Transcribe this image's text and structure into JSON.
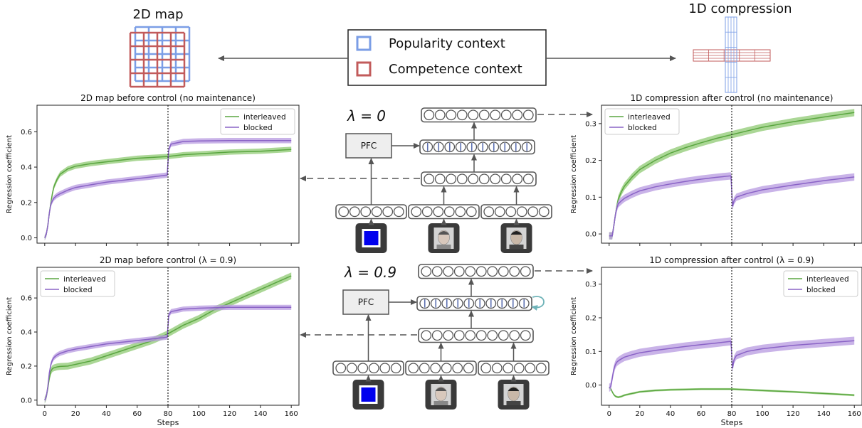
{
  "top": {
    "map2d_label": "2D map",
    "compress1d_label": "1D compression",
    "legend": {
      "popularity": "Popularity context",
      "competence": "Competence context",
      "popularity_color": "#7b9ee6",
      "competence_color": "#c25b5b"
    }
  },
  "network": {
    "lambda0": "λ = 0",
    "lambda09": "λ = 0.9",
    "pfc_label": "PFC",
    "square_icon_color": "#0000ee"
  },
  "colors": {
    "interleaved": "#5aa640",
    "interleaved_fill": "#8fca73",
    "blocked": "#8a63c6",
    "blocked_fill": "#b79ae0"
  },
  "chart_data": [
    {
      "type": "line",
      "title": "2D map before control (no maintenance)",
      "ylabel": "Regression coefficient",
      "xlabel": "",
      "xlim": [
        -5,
        165
      ],
      "ylim": [
        -0.03,
        0.75
      ],
      "yticks": [
        0.0,
        0.2,
        0.4,
        0.6
      ],
      "xticks": [
        0,
        20,
        40,
        60,
        80,
        100,
        120,
        140,
        160
      ],
      "show_xtick_labels": false,
      "vline": 80,
      "legend_position": "top-right",
      "series": [
        {
          "name": "interleaved",
          "band": 0.015,
          "x": [
            0,
            1,
            2,
            3,
            4,
            5,
            6,
            8,
            10,
            15,
            20,
            30,
            40,
            50,
            60,
            70,
            80,
            90,
            100,
            120,
            140,
            160
          ],
          "y": [
            0.0,
            0.02,
            0.07,
            0.14,
            0.2,
            0.25,
            0.29,
            0.33,
            0.36,
            0.39,
            0.405,
            0.42,
            0.43,
            0.44,
            0.45,
            0.455,
            0.46,
            0.47,
            0.475,
            0.485,
            0.49,
            0.5
          ]
        },
        {
          "name": "blocked",
          "band": 0.015,
          "x": [
            0,
            1,
            2,
            3,
            4,
            5,
            6,
            8,
            10,
            15,
            20,
            30,
            40,
            50,
            60,
            70,
            79.5,
            80.5,
            82,
            90,
            100,
            120,
            140,
            160
          ],
          "y": [
            0.0,
            0.02,
            0.07,
            0.14,
            0.19,
            0.21,
            0.225,
            0.24,
            0.25,
            0.27,
            0.285,
            0.3,
            0.315,
            0.325,
            0.335,
            0.345,
            0.355,
            0.5,
            0.53,
            0.545,
            0.548,
            0.55,
            0.55,
            0.55
          ]
        }
      ]
    },
    {
      "type": "line",
      "title": "2D map before control (λ = 0.9)",
      "ylabel": "Regression coefficient",
      "xlabel": "Steps",
      "xlim": [
        -5,
        165
      ],
      "ylim": [
        -0.03,
        0.78
      ],
      "yticks": [
        0.0,
        0.2,
        0.4,
        0.6
      ],
      "xticks": [
        0,
        20,
        40,
        60,
        80,
        100,
        120,
        140,
        160
      ],
      "show_xtick_labels": true,
      "vline": 80,
      "legend_position": "top-left",
      "series": [
        {
          "name": "interleaved",
          "band": 0.02,
          "x": [
            0,
            1,
            2,
            3,
            4,
            5,
            6,
            8,
            10,
            15,
            20,
            30,
            40,
            50,
            60,
            70,
            80,
            90,
            100,
            110,
            120,
            130,
            140,
            150,
            160
          ],
          "y": [
            0.0,
            0.02,
            0.07,
            0.13,
            0.17,
            0.185,
            0.19,
            0.195,
            0.198,
            0.2,
            0.21,
            0.23,
            0.26,
            0.29,
            0.32,
            0.35,
            0.39,
            0.44,
            0.48,
            0.53,
            0.57,
            0.61,
            0.65,
            0.69,
            0.73
          ]
        },
        {
          "name": "blocked",
          "band": 0.015,
          "x": [
            0,
            1,
            2,
            3,
            4,
            5,
            6,
            8,
            10,
            15,
            20,
            30,
            40,
            50,
            60,
            70,
            79.5,
            80.5,
            82,
            90,
            100,
            120,
            140,
            160
          ],
          "y": [
            0.0,
            0.02,
            0.08,
            0.16,
            0.21,
            0.235,
            0.25,
            0.265,
            0.275,
            0.29,
            0.3,
            0.315,
            0.33,
            0.34,
            0.35,
            0.36,
            0.37,
            0.5,
            0.52,
            0.535,
            0.54,
            0.545,
            0.545,
            0.545
          ]
        }
      ]
    },
    {
      "type": "line",
      "title": "1D compression after control (no maintenance)",
      "ylabel": "Regression coefficient",
      "xlabel": "",
      "xlim": [
        -5,
        165
      ],
      "ylim": [
        -0.025,
        0.35
      ],
      "yticks": [
        0.0,
        0.1,
        0.2,
        0.3
      ],
      "xticks": [
        0,
        20,
        40,
        60,
        80,
        100,
        120,
        140,
        160
      ],
      "show_xtick_labels": false,
      "vline": 80,
      "legend_position": "top-left",
      "series": [
        {
          "name": "interleaved",
          "band": 0.01,
          "x": [
            0,
            2,
            3,
            4,
            5,
            6,
            8,
            10,
            15,
            20,
            30,
            40,
            50,
            60,
            70,
            80,
            90,
            100,
            120,
            140,
            160
          ],
          "y": [
            -0.005,
            -0.005,
            0.02,
            0.05,
            0.075,
            0.095,
            0.115,
            0.13,
            0.155,
            0.175,
            0.2,
            0.22,
            0.235,
            0.248,
            0.26,
            0.27,
            0.28,
            0.29,
            0.305,
            0.318,
            0.33
          ]
        },
        {
          "name": "blocked",
          "band": 0.01,
          "x": [
            0,
            2,
            3,
            4,
            5,
            6,
            8,
            10,
            15,
            20,
            30,
            40,
            50,
            60,
            70,
            79.5,
            80.5,
            81.5,
            83,
            90,
            100,
            120,
            140,
            160
          ],
          "y": [
            -0.005,
            -0.005,
            0.02,
            0.05,
            0.07,
            0.082,
            0.09,
            0.097,
            0.108,
            0.117,
            0.128,
            0.136,
            0.143,
            0.149,
            0.154,
            0.158,
            0.075,
            0.09,
            0.1,
            0.11,
            0.12,
            0.133,
            0.145,
            0.155
          ]
        }
      ]
    },
    {
      "type": "line",
      "title": "1D compression after control (λ = 0.9)",
      "ylabel": "Regression coefficient",
      "xlabel": "Steps",
      "xlim": [
        -5,
        165
      ],
      "ylim": [
        -0.06,
        0.35
      ],
      "yticks": [
        0.0,
        0.1,
        0.2,
        0.3
      ],
      "xticks": [
        0,
        20,
        40,
        60,
        80,
        100,
        120,
        140,
        160
      ],
      "show_xtick_labels": true,
      "vline": 80,
      "legend_position": "top-right",
      "series": [
        {
          "name": "interleaved",
          "band": 0.003,
          "x": [
            0,
            1,
            2,
            3,
            4,
            5,
            6,
            8,
            10,
            15,
            20,
            30,
            40,
            50,
            60,
            70,
            80,
            90,
            100,
            120,
            140,
            160
          ],
          "y": [
            -0.008,
            -0.01,
            -0.02,
            -0.028,
            -0.033,
            -0.035,
            -0.036,
            -0.034,
            -0.03,
            -0.025,
            -0.02,
            -0.016,
            -0.014,
            -0.013,
            -0.012,
            -0.012,
            -0.012,
            -0.014,
            -0.016,
            -0.02,
            -0.025,
            -0.03
          ]
        },
        {
          "name": "blocked",
          "band": 0.012,
          "x": [
            0,
            1,
            2,
            3,
            4,
            5,
            6,
            8,
            10,
            15,
            20,
            30,
            40,
            50,
            60,
            70,
            79.5,
            80.5,
            81.5,
            83,
            90,
            100,
            120,
            140,
            160
          ],
          "y": [
            -0.008,
            -0.005,
            0.02,
            0.045,
            0.06,
            0.068,
            0.072,
            0.078,
            0.083,
            0.09,
            0.096,
            0.103,
            0.109,
            0.115,
            0.12,
            0.125,
            0.13,
            0.05,
            0.075,
            0.088,
            0.1,
            0.108,
            0.118,
            0.125,
            0.132
          ]
        }
      ]
    }
  ]
}
